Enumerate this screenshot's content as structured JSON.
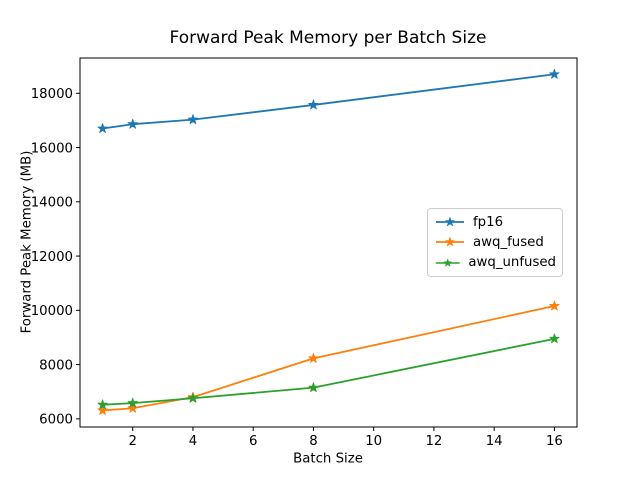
{
  "chart_data": {
    "type": "line",
    "title": "Forward Peak Memory per Batch Size",
    "xlabel": "Batch Size",
    "ylabel": "Forward Peak Memory (MB)",
    "x": [
      1,
      2,
      4,
      8,
      16
    ],
    "series": [
      {
        "name": "fp16",
        "color": "#1f77b4",
        "values": [
          16700,
          16860,
          17030,
          17570,
          18700
        ]
      },
      {
        "name": "awq_fused",
        "color": "#ff7f0e",
        "values": [
          6310,
          6390,
          6800,
          8230,
          10160
        ]
      },
      {
        "name": "awq_unfused",
        "color": "#2ca02c",
        "values": [
          6520,
          6580,
          6760,
          7150,
          8950
        ]
      }
    ],
    "x_ticks": [
      2,
      4,
      6,
      8,
      10,
      12,
      14,
      16
    ],
    "y_ticks": [
      6000,
      8000,
      10000,
      12000,
      14000,
      16000,
      18000
    ],
    "xlim": [
      0.25,
      16.75
    ],
    "ylim": [
      5700,
      19300
    ],
    "marker": "star",
    "grid": false,
    "legend_position": "center right",
    "background_color": "#ffffff",
    "axes_edge_color": "#000000",
    "legend_edge_color": "#cccccc"
  }
}
